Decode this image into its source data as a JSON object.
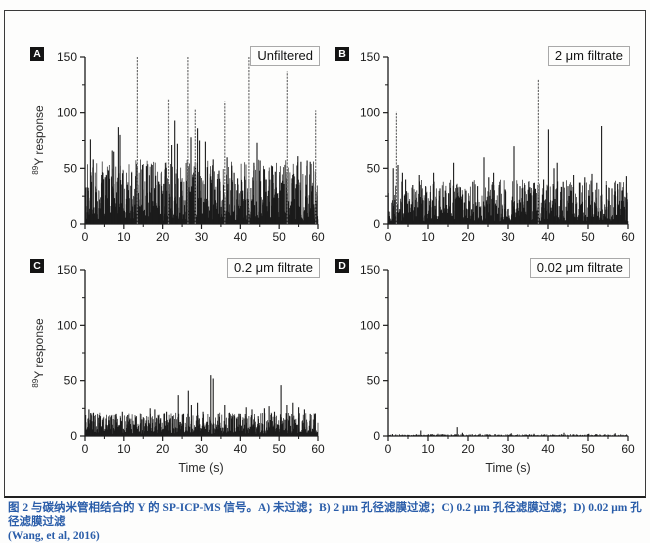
{
  "figure": {
    "caption": {
      "line1": "图 2 与碳纳米管相结合的 Y 的 SP-ICP-MS 信号。A) 未过滤；B) 2 μm 孔径滤膜过滤；C) 0.2 μm 孔径滤膜过滤；D) 0.02 μm 孔径滤膜过滤",
      "line2": "(Wang, et al, 2016)",
      "color": "#2a5da9"
    }
  },
  "chart_data": {
    "type": "line",
    "subtype": "spike-train time scans (SP-ICP-MS), 2x2 panel grid",
    "xlabel": "Time (s)",
    "ylabel_sup": "89",
    "ylabel_text": "Y response",
    "xlim": [
      0,
      60
    ],
    "ylim": [
      0,
      150
    ],
    "xticks": [
      0,
      10,
      20,
      30,
      40,
      50,
      60
    ],
    "yticks": [
      0,
      50,
      100,
      150
    ],
    "xminor": [
      5,
      15,
      25,
      35,
      45,
      55
    ],
    "yminor": [
      25,
      75,
      125
    ],
    "grid": false,
    "legend_position": "top-right inset box",
    "ink_color": "#1b1b1b",
    "tall_peak_color": "#6e6e6e",
    "noise_note": "dense baseline noise approximated procedurally (power-law heights, seeded)",
    "panels": [
      {
        "badge": "A",
        "legend": "Unfiltered",
        "noise": {
          "seed": 11,
          "count": 1500,
          "floor": 3,
          "max": 58,
          "k": 3.6
        },
        "peaks": [
          [
            1.4,
            76
          ],
          [
            2.1,
            58
          ],
          [
            4.3,
            44
          ],
          [
            5.2,
            42
          ],
          [
            7.0,
            66
          ],
          [
            7.4,
            65
          ],
          [
            8.6,
            87
          ],
          [
            9.0,
            80
          ],
          [
            10.8,
            35
          ],
          [
            12.0,
            46
          ],
          [
            13.5,
            150
          ],
          [
            14.8,
            53
          ],
          [
            15.8,
            52
          ],
          [
            17.3,
            53
          ],
          [
            19.0,
            38
          ],
          [
            20.3,
            36
          ],
          [
            21.5,
            112
          ],
          [
            22.3,
            71
          ],
          [
            23.1,
            93
          ],
          [
            23.8,
            72
          ],
          [
            25.0,
            30
          ],
          [
            26.5,
            150
          ],
          [
            27.3,
            78
          ],
          [
            28.4,
            103
          ],
          [
            29.0,
            86
          ],
          [
            29.5,
            75
          ],
          [
            31.0,
            74
          ],
          [
            33.0,
            58
          ],
          [
            34.5,
            48
          ],
          [
            36.0,
            110
          ],
          [
            36.6,
            60
          ],
          [
            37.8,
            48
          ],
          [
            38.4,
            46
          ],
          [
            39.3,
            41
          ],
          [
            40.6,
            30
          ],
          [
            42.2,
            150
          ],
          [
            43.5,
            55
          ],
          [
            44.3,
            73
          ],
          [
            45.1,
            57
          ],
          [
            46.4,
            40
          ],
          [
            48.2,
            52
          ],
          [
            49.0,
            47
          ],
          [
            50.6,
            37
          ],
          [
            52.1,
            137
          ],
          [
            53.3,
            41
          ],
          [
            54.8,
            61
          ],
          [
            55.6,
            56
          ],
          [
            57.2,
            57
          ],
          [
            58.0,
            56
          ],
          [
            59.4,
            102
          ]
        ]
      },
      {
        "badge": "B",
        "legend": "2 μm filtrate",
        "noise": {
          "seed": 22,
          "count": 1350,
          "floor": 2.5,
          "max": 40,
          "k": 3.6
        },
        "peaks": [
          [
            1.3,
            50
          ],
          [
            2.1,
            101
          ],
          [
            2.5,
            53
          ],
          [
            3.6,
            46
          ],
          [
            4.4,
            40
          ],
          [
            6.2,
            35
          ],
          [
            7.8,
            44
          ],
          [
            9.4,
            34
          ],
          [
            11.4,
            46
          ],
          [
            13.0,
            32
          ],
          [
            14.3,
            30
          ],
          [
            16.4,
            55
          ],
          [
            18.1,
            33
          ],
          [
            19.5,
            30
          ],
          [
            21.2,
            38
          ],
          [
            22.4,
            34
          ],
          [
            24.0,
            60
          ],
          [
            25.2,
            42
          ],
          [
            26.4,
            46
          ],
          [
            27.8,
            35
          ],
          [
            29.3,
            31
          ],
          [
            31.5,
            70
          ],
          [
            33.0,
            34
          ],
          [
            34.2,
            35
          ],
          [
            35.5,
            33
          ],
          [
            37.6,
            130
          ],
          [
            38.9,
            40
          ],
          [
            40.1,
            85
          ],
          [
            41.5,
            50
          ],
          [
            42.3,
            55
          ],
          [
            43.8,
            38
          ],
          [
            45.0,
            34
          ],
          [
            46.4,
            44
          ],
          [
            48.0,
            37
          ],
          [
            49.2,
            42
          ],
          [
            51.0,
            45
          ],
          [
            52.2,
            37
          ],
          [
            53.4,
            88
          ],
          [
            54.6,
            35
          ],
          [
            56.0,
            32
          ],
          [
            57.4,
            36
          ],
          [
            58.5,
            30
          ],
          [
            59.6,
            43
          ]
        ]
      },
      {
        "badge": "C",
        "legend": "0.2 μm filtrate",
        "noise": {
          "seed": 33,
          "count": 1350,
          "floor": 2,
          "max": 21,
          "k": 3.0
        },
        "peaks": [
          [
            1.0,
            24
          ],
          [
            2.2,
            21
          ],
          [
            4.0,
            18
          ],
          [
            6.5,
            17
          ],
          [
            8.0,
            20
          ],
          [
            9.6,
            22
          ],
          [
            11.0,
            19
          ],
          [
            13.2,
            18
          ],
          [
            15.0,
            17
          ],
          [
            16.8,
            25
          ],
          [
            18.0,
            24
          ],
          [
            19.5,
            16
          ],
          [
            21.0,
            22
          ],
          [
            22.5,
            18
          ],
          [
            24.0,
            37
          ],
          [
            25.3,
            20
          ],
          [
            26.6,
            41
          ],
          [
            27.4,
            28
          ],
          [
            29.0,
            30
          ],
          [
            30.4,
            22
          ],
          [
            32.4,
            55
          ],
          [
            33.0,
            52
          ],
          [
            34.3,
            20
          ],
          [
            36.0,
            28
          ],
          [
            37.2,
            21
          ],
          [
            38.5,
            18
          ],
          [
            40.0,
            20
          ],
          [
            41.5,
            26
          ],
          [
            43.0,
            24
          ],
          [
            44.6,
            18
          ],
          [
            46.2,
            25
          ],
          [
            47.4,
            27
          ],
          [
            48.8,
            22
          ],
          [
            50.5,
            46
          ],
          [
            52.0,
            28
          ],
          [
            53.5,
            30
          ],
          [
            55.0,
            26
          ],
          [
            56.5,
            24
          ],
          [
            58.0,
            20
          ],
          [
            59.2,
            18
          ]
        ]
      },
      {
        "badge": "D",
        "legend": "0.02 μm filtrate",
        "noise": {
          "seed": 44,
          "count": 700,
          "floor": 0.2,
          "max": 1.8,
          "k": 3.0
        },
        "peaks": [
          [
            8.2,
            5
          ],
          [
            12.5,
            2
          ],
          [
            17.3,
            8
          ],
          [
            18.6,
            3
          ],
          [
            23.0,
            2
          ],
          [
            30.8,
            2.5
          ],
          [
            36.5,
            2
          ],
          [
            44.0,
            3
          ],
          [
            50.2,
            2
          ],
          [
            56.8,
            2.5
          ]
        ]
      }
    ]
  }
}
